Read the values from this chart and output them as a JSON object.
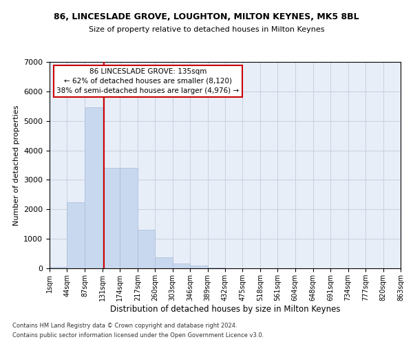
{
  "title1": "86, LINCESLADE GROVE, LOUGHTON, MILTON KEYNES, MK5 8BL",
  "title2": "Size of property relative to detached houses in Milton Keynes",
  "xlabel": "Distribution of detached houses by size in Milton Keynes",
  "ylabel": "Number of detached properties",
  "footer1": "Contains HM Land Registry data © Crown copyright and database right 2024.",
  "footer2": "Contains public sector information licensed under the Open Government Licence v3.0.",
  "annotation_line1": "86 LINCESLADE GROVE: 135sqm",
  "annotation_line2": "← 62% of detached houses are smaller (8,120)",
  "annotation_line3": "38% of semi-detached houses are larger (4,976) →",
  "property_size": 135,
  "bar_color": "#c8d8ee",
  "bar_edge_color": "#aabbd8",
  "vline_color": "#cc0000",
  "annotation_box_color": "#cc0000",
  "background_color": "#ffffff",
  "axes_bg_color": "#e8eef8",
  "grid_color": "#c8d0e0",
  "bin_edges": [
    1,
    44,
    87,
    131,
    174,
    217,
    260,
    303,
    346,
    389,
    432,
    475,
    518,
    561,
    604,
    648,
    691,
    734,
    777,
    820,
    863
  ],
  "bin_labels": [
    "1sqm",
    "44sqm",
    "87sqm",
    "131sqm",
    "174sqm",
    "217sqm",
    "260sqm",
    "303sqm",
    "346sqm",
    "389sqm",
    "432sqm",
    "475sqm",
    "518sqm",
    "561sqm",
    "604sqm",
    "648sqm",
    "691sqm",
    "734sqm",
    "777sqm",
    "820sqm",
    "863sqm"
  ],
  "bar_heights": [
    55,
    2250,
    5450,
    3400,
    3400,
    1300,
    380,
    175,
    90,
    30,
    5,
    2,
    1,
    0,
    0,
    0,
    0,
    0,
    0,
    0
  ],
  "ylim": [
    0,
    7000
  ],
  "yticks": [
    0,
    1000,
    2000,
    3000,
    4000,
    5000,
    6000,
    7000
  ]
}
